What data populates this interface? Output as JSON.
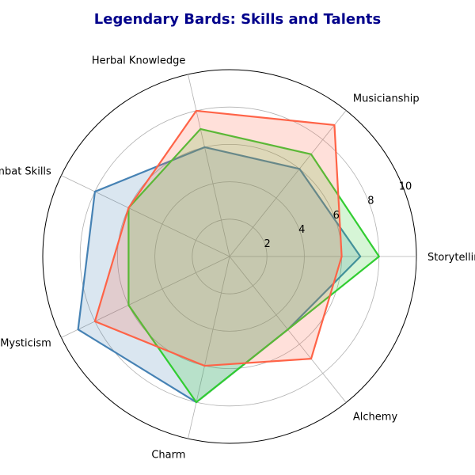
{
  "chart_data": {
    "type": "radar",
    "title": "Legendary Bards: Skills and Talents",
    "categories": [
      "Storytelling",
      "Musicianship",
      "Herbal Knowledge",
      "Combat Skills",
      "Mysticism",
      "Charm",
      "Alchemy"
    ],
    "rlim": [
      0,
      10
    ],
    "rticks": [
      2,
      4,
      6,
      8,
      10
    ],
    "grid": true,
    "series": [
      {
        "values": [
          7,
          6,
          6,
          8,
          9,
          8,
          5
        ],
        "color": "#4682b4",
        "fill": "#4682b4"
      },
      {
        "values": [
          8,
          7,
          7,
          6,
          6,
          8,
          5
        ],
        "color": "#32cd32",
        "fill": "#32cd32"
      },
      {
        "values": [
          6,
          9,
          8,
          6,
          8,
          6,
          7
        ],
        "color": "#ff6347",
        "fill": "#ff6347"
      }
    ]
  }
}
